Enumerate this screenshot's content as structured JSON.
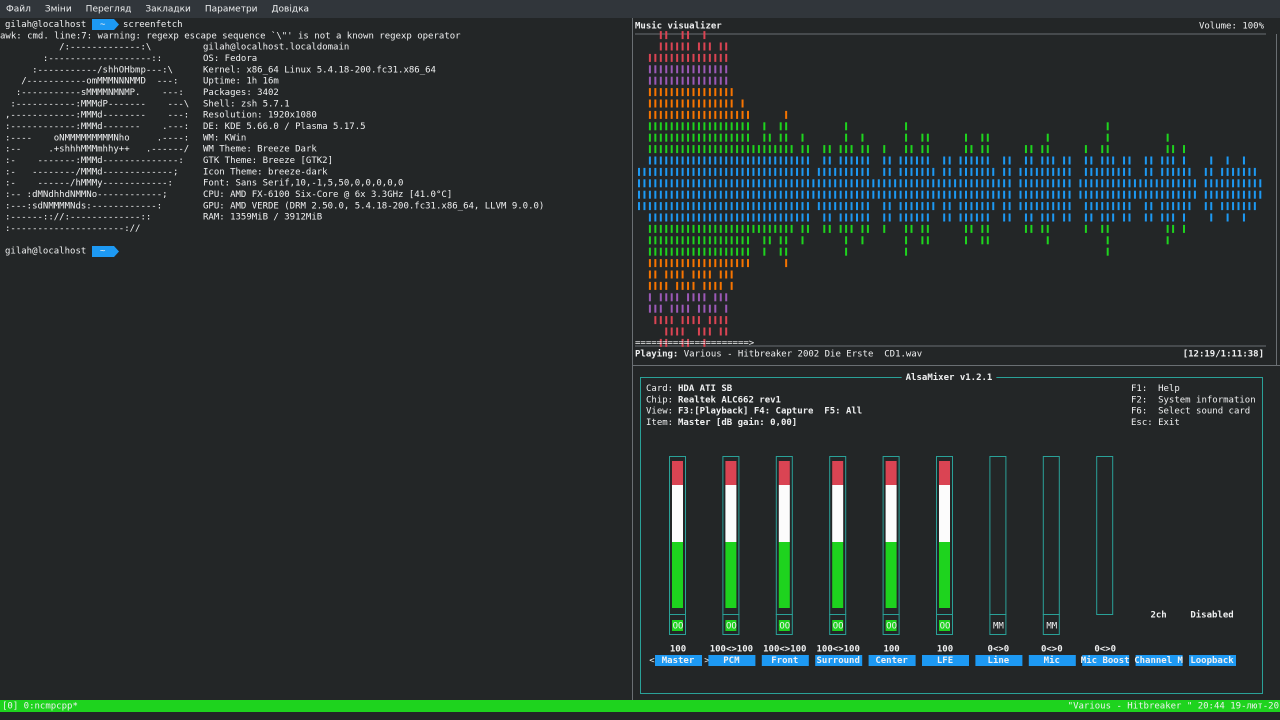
{
  "menu": [
    "Файл",
    "Зміни",
    "Перегляд",
    "Закладки",
    "Параметри",
    "Довідка"
  ],
  "terminal": {
    "prompt_user": "gilah@localhost",
    "prompt_dir": "~",
    "command": "screenfetch",
    "warning": "awk: cmd. line:7: warning: regexp escape sequence `\\\"' is not a known regexp operator",
    "logo": [
      "          /:-------------:\\",
      "       :-------------------::",
      "     :-----------/shhOHbmp---:\\",
      "   /-----------omMMMNNNMMD  ---:",
      "  :-----------sMMMMNMNMP.    ---:",
      " :-----------:MMMdP-------    ---\\",
      ",------------:MMMd--------    ---:",
      ":------------:MMMd-------    .---:",
      ":----    oNMMMMMMMMMNho     .----:",
      ":--     .+shhhMMMmhhy++   .------/",
      ":-    -------:MMMd--------------:",
      ":-   --------/MMMd-------------;",
      ":-    ------/hMMMy------------:",
      ":-- :dMNdhhdNMMNo------------;",
      ":---:sdNMMMMNds:------------:",
      ":------:://:-------------::",
      ":---------------------://"
    ],
    "user": "gilah@localhost.localdomain",
    "info": [
      {
        "label": "OS:",
        "value": "Fedora"
      },
      {
        "label": "Kernel:",
        "value": "x86_64 Linux 5.4.18-200.fc31.x86_64"
      },
      {
        "label": "Uptime:",
        "value": "1h 16m"
      },
      {
        "label": "Packages:",
        "value": "3402"
      },
      {
        "label": "Shell:",
        "value": "zsh 5.7.1"
      },
      {
        "label": "Resolution:",
        "value": "1920x1080"
      },
      {
        "label": "DE:",
        "value": "KDE 5.66.0 / Plasma 5.17.5"
      },
      {
        "label": "WM:",
        "value": "KWin"
      },
      {
        "label": "WM Theme:",
        "value": "Breeze Dark"
      },
      {
        "label": "GTK Theme:",
        "value": "Breeze [GTK2]"
      },
      {
        "label": "Icon Theme:",
        "value": "breeze-dark"
      },
      {
        "label": "Font:",
        "value": "Sans Serif,10,-1,5,50,0,0,0,0,0"
      },
      {
        "label": "CPU:",
        "value": "AMD FX-6100 Six-Core @ 6x 3.3GHz [41.0°C]"
      },
      {
        "label": "GPU:",
        "value": "AMD VERDE (DRM 2.50.0, 5.4.18-200.fc31.x86_64, LLVM 9.0.0)"
      },
      {
        "label": "RAM:",
        "value": "1359MiB / 3912MiB"
      }
    ]
  },
  "visualizer": {
    "title": "Music visualizer",
    "volume": "Volume: 100%",
    "progress": "=====================>",
    "playing_label": "Playing:",
    "track": "Various - Hitbreaker 2002 Die Erste  CD1.wav",
    "time": "[12:19/1:11:38]"
  },
  "mixer": {
    "title": "AlsaMixer v1.2.1",
    "info": [
      {
        "label": "Card:",
        "value": "HDA ATI SB"
      },
      {
        "label": "Chip:",
        "value": "Realtek ALC662 rev1"
      },
      {
        "label": "View:",
        "value": "F3:[Playback] F4: Capture  F5: All"
      },
      {
        "label": "Item:",
        "value": "Master [dB gain: 0,00]"
      }
    ],
    "help": [
      "F1:  Help",
      "F2:  System information",
      "F6:  Select sound card",
      "Esc: Exit"
    ],
    "selection_marks": [
      "<",
      ">"
    ],
    "channels": [
      {
        "name": "Master",
        "level": 100,
        "value_label": "100",
        "mute": "OO"
      },
      {
        "name": "PCM",
        "level": 100,
        "value_label": "100<>100",
        "mute": "OO"
      },
      {
        "name": "Front",
        "level": 100,
        "value_label": "100<>100",
        "mute": "OO"
      },
      {
        "name": "Surround",
        "level": 100,
        "value_label": "100<>100",
        "mute": "OO"
      },
      {
        "name": "Center",
        "level": 100,
        "value_label": "100",
        "mute": "OO"
      },
      {
        "name": "LFE",
        "level": 100,
        "value_label": "100",
        "mute": "OO"
      },
      {
        "name": "Line",
        "level": 0,
        "value_label": "0<>0",
        "mute": "MM"
      },
      {
        "name": "Mic",
        "level": 0,
        "value_label": "0<>0",
        "mute": "MM"
      },
      {
        "name": "Mic Boost",
        "level": 0,
        "value_label": "0<>0"
      },
      {
        "name": "Channel M",
        "setting": "2ch"
      },
      {
        "name": "Loopback",
        "setting": "Disabled"
      }
    ]
  },
  "status": {
    "left": "[0] 0:ncmpcpp*",
    "right": "\"Various - Hitbreaker \" 20:44 19-лют-20"
  }
}
